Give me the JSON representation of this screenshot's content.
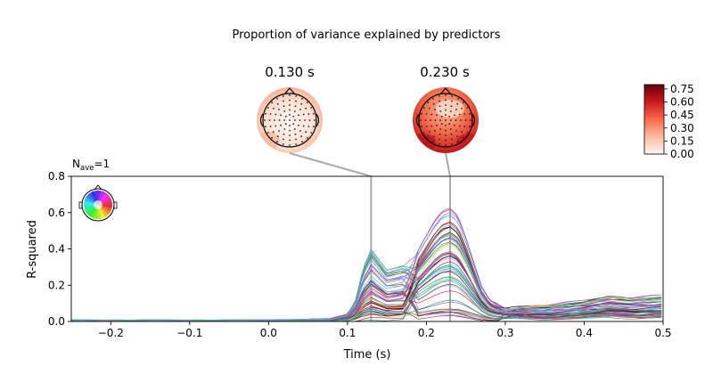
{
  "figure": {
    "title": "Proportion of variance explained by predictors",
    "nave_prefix": "N",
    "nave_sub": "ave",
    "nave_suffix": "=1"
  },
  "chart_data": {
    "type": "line",
    "xlabel": "Time (s)",
    "ylabel": "R-squared",
    "xlim": [
      -0.25,
      0.5
    ],
    "ylim": [
      0.0,
      0.8
    ],
    "x_ticks": [
      -0.2,
      -0.1,
      0.0,
      0.1,
      0.2,
      0.3,
      0.4,
      0.5
    ],
    "x_tick_labels": [
      "−0.2",
      "−0.1",
      "0.0",
      "0.1",
      "0.2",
      "0.3",
      "0.4",
      "0.5"
    ],
    "y_ticks": [
      0.0,
      0.2,
      0.4,
      0.6,
      0.8
    ],
    "y_tick_labels": [
      "0.0",
      "0.2",
      "0.4",
      "0.6",
      "0.8"
    ],
    "grid": false,
    "n_channels": 60,
    "peak_time_labels": [
      "0.130 s",
      "0.230 s"
    ],
    "peak_times": [
      0.13,
      0.23
    ],
    "mean_profile": {
      "x": [
        -0.25,
        -0.15,
        -0.05,
        0.0,
        0.05,
        0.08,
        0.1,
        0.11,
        0.12,
        0.13,
        0.14,
        0.15,
        0.17,
        0.19,
        0.2,
        0.21,
        0.22,
        0.23,
        0.24,
        0.25,
        0.26,
        0.27,
        0.28,
        0.3,
        0.32,
        0.35,
        0.4,
        0.43,
        0.46,
        0.5
      ],
      "y": [
        0.004,
        0.004,
        0.004,
        0.005,
        0.006,
        0.008,
        0.02,
        0.06,
        0.15,
        0.2,
        0.17,
        0.14,
        0.15,
        0.2,
        0.24,
        0.28,
        0.31,
        0.32,
        0.3,
        0.24,
        0.17,
        0.1,
        0.06,
        0.035,
        0.03,
        0.03,
        0.04,
        0.05,
        0.045,
        0.05
      ]
    },
    "channel_colors": [
      "#1a1a1a",
      "#3a3a3a",
      "#8b0000",
      "#c0152b",
      "#e0402a",
      "#d4145a",
      "#9b1a4a",
      "#6a2b5a",
      "#7cdc7c",
      "#5fd18a",
      "#a6e36b",
      "#4ec0c0",
      "#56b4e9",
      "#3a7fd6",
      "#6a5acd",
      "#8a63d2",
      "#b266e0",
      "#c77ce8",
      "#2e8b57",
      "#40c080"
    ],
    "colorbar": {
      "min": 0.0,
      "max": 0.8,
      "ticks": [
        0.0,
        0.15,
        0.3,
        0.45,
        0.6,
        0.75
      ],
      "tick_labels": [
        "0.00",
        "0.15",
        "0.30",
        "0.45",
        "0.60",
        "0.75"
      ],
      "colormap": "Reds"
    },
    "sensor_legend_icon": "channel-position-legend-icon",
    "topomap_icons": [
      "topomap-head-icon",
      "topomap-head-icon"
    ]
  }
}
